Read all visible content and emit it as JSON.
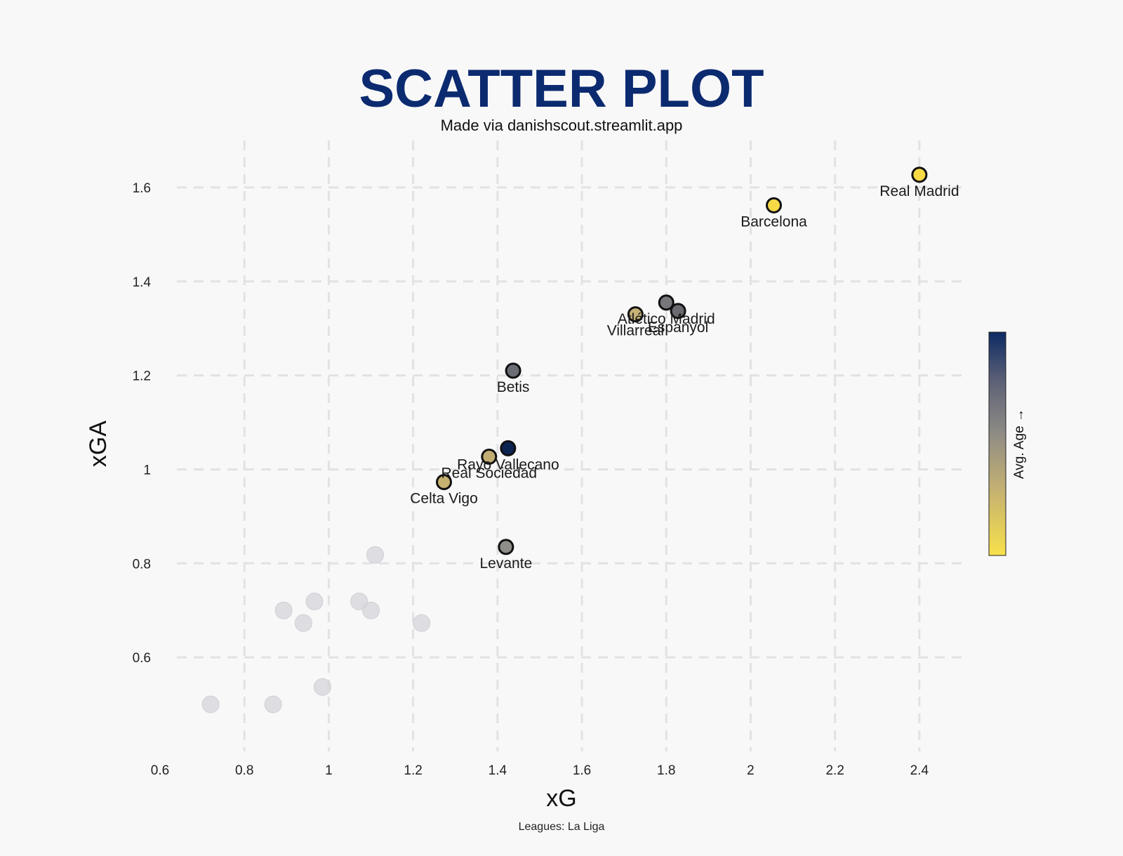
{
  "chart_data": {
    "type": "scatter",
    "title": "SCATTER PLOT",
    "subtitle": "Made via danishscout.streamlit.app",
    "xlabel": "xG",
    "ylabel": "xGA",
    "footer": "Leagues: La Liga",
    "xlim": [
      0.6,
      2.5
    ],
    "ylim": [
      0.4,
      1.7
    ],
    "xticks": [
      {
        "value": 0.6,
        "label": "0.6"
      },
      {
        "value": 0.8,
        "label": "0.8"
      },
      {
        "value": 1.0,
        "label": "1"
      },
      {
        "value": 1.2,
        "label": "1.2"
      },
      {
        "value": 1.4,
        "label": "1.4"
      },
      {
        "value": 1.6,
        "label": "1.6"
      },
      {
        "value": 1.8,
        "label": "1.8"
      },
      {
        "value": 2.0,
        "label": "2"
      },
      {
        "value": 2.2,
        "label": "2.2"
      },
      {
        "value": 2.4,
        "label": "2.4"
      }
    ],
    "yticks": [
      {
        "value": 0.6,
        "label": "0.6"
      },
      {
        "value": 0.8,
        "label": "0.8"
      },
      {
        "value": 1.0,
        "label": "1"
      },
      {
        "value": 1.2,
        "label": "1.2"
      },
      {
        "value": 1.4,
        "label": "1.4"
      },
      {
        "value": 1.6,
        "label": "1.6"
      }
    ],
    "grid": true,
    "colorbar": {
      "label": "Avg. Age →",
      "placement": "right",
      "colors": [
        "#f8e14a",
        "#c3b072",
        "#8e8b85",
        "#5d6176",
        "#0c2a63"
      ]
    },
    "highlighted": [
      {
        "name": "Real Madrid",
        "x": 2.4,
        "y": 1.627,
        "color": "#f7da46",
        "label_dx": 0,
        "label_dy": 22
      },
      {
        "name": "Barcelona",
        "x": 2.055,
        "y": 1.562,
        "color": "#f7da46",
        "label_dx": 0,
        "label_dy": 22
      },
      {
        "name": "Atlético Madrid",
        "x": 1.8,
        "y": 1.355,
        "color": "#77777b",
        "label_dx": 0,
        "label_dy": 22
      },
      {
        "name": "Espanyol",
        "x": 1.828,
        "y": 1.337,
        "color": "#6a6a70",
        "label_dx": 0,
        "label_dy": 22
      },
      {
        "name": "Villarreal",
        "x": 1.727,
        "y": 1.33,
        "color": "#c6b176",
        "label_dx": 0,
        "label_dy": 22
      },
      {
        "name": "Betis",
        "x": 1.437,
        "y": 1.21,
        "color": "#6b6d75",
        "label_dx": 0,
        "label_dy": 22
      },
      {
        "name": "Rayo Vallecano",
        "x": 1.425,
        "y": 1.045,
        "color": "#0c2452",
        "label_dx": 0,
        "label_dy": 22
      },
      {
        "name": "Real Sociedad",
        "x": 1.38,
        "y": 1.027,
        "color": "#c2ad73",
        "label_dx": 0,
        "label_dy": 22
      },
      {
        "name": "Celta Vigo",
        "x": 1.273,
        "y": 0.973,
        "color": "#c6b170",
        "label_dx": 0,
        "label_dy": 22
      },
      {
        "name": "Levante",
        "x": 1.42,
        "y": 0.835,
        "color": "#8f8e89",
        "label_dx": 0,
        "label_dy": 22
      }
    ],
    "background_points": [
      {
        "x": 1.11,
        "y": 0.818
      },
      {
        "x": 0.893,
        "y": 0.7
      },
      {
        "x": 0.966,
        "y": 0.719
      },
      {
        "x": 0.94,
        "y": 0.673
      },
      {
        "x": 1.072,
        "y": 0.719
      },
      {
        "x": 1.1,
        "y": 0.7
      },
      {
        "x": 1.22,
        "y": 0.673
      },
      {
        "x": 0.985,
        "y": 0.537
      },
      {
        "x": 0.72,
        "y": 0.5
      },
      {
        "x": 0.868,
        "y": 0.5
      }
    ]
  }
}
